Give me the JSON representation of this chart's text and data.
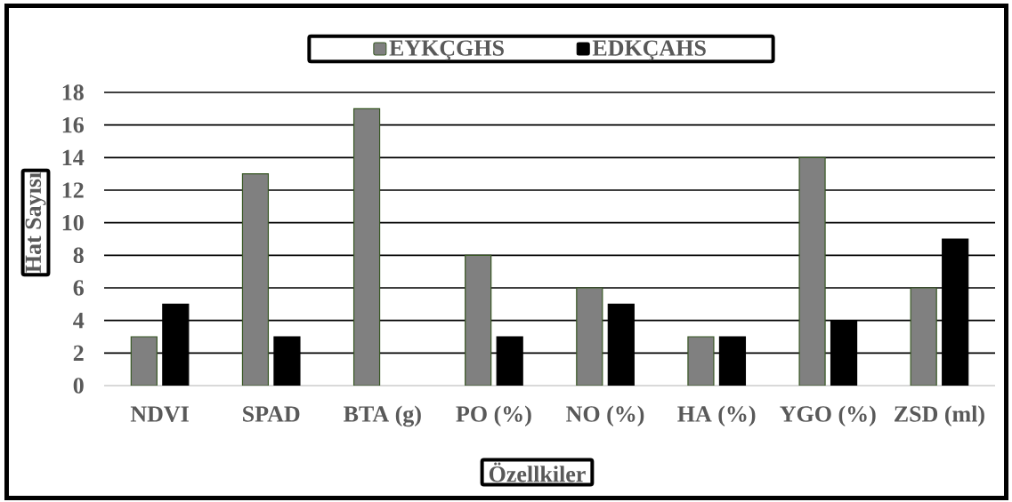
{
  "chart_data": {
    "type": "bar",
    "xlabel": "Özellkiler",
    "ylabel": "Hat Sayısı",
    "categories": [
      "NDVI",
      "SPAD",
      "BTA (g)",
      "PO (%)",
      "NO (%)",
      "HA (%)",
      "YGO (%)",
      "ZSD (ml)"
    ],
    "series": [
      {
        "name": "EYKÇGHS",
        "color": "#808080",
        "values": [
          3,
          13,
          17,
          8,
          6,
          3,
          14,
          6
        ]
      },
      {
        "name": "EDKÇAHS",
        "color": "#000000",
        "values": [
          5,
          3,
          null,
          3,
          5,
          3,
          4,
          9
        ]
      }
    ],
    "ylim": [
      0,
      18
    ],
    "yticks": [
      0,
      2,
      4,
      6,
      8,
      10,
      12,
      14,
      16,
      18
    ],
    "grid": "y",
    "legend": "top"
  }
}
